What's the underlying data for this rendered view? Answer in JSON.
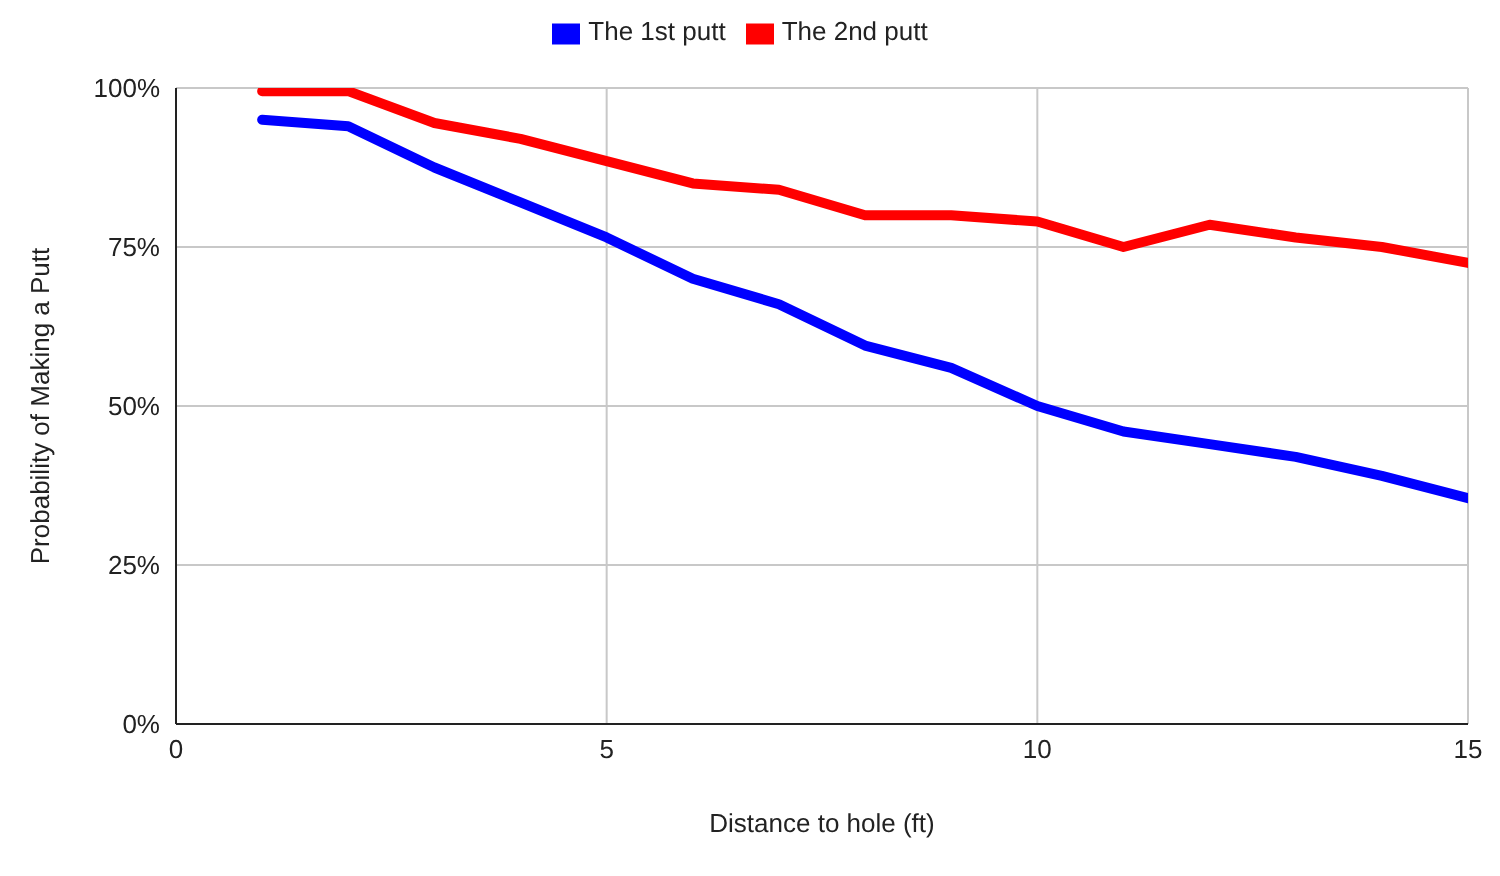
{
  "chart_data": {
    "type": "line",
    "xlabel": "Distance to hole (ft)",
    "ylabel": "Probability of Making a Putt",
    "x": [
      1,
      2,
      3,
      4,
      5,
      6,
      7,
      8,
      9,
      10,
      11,
      12,
      13,
      14,
      15
    ],
    "series": [
      {
        "name": "The 1st putt",
        "color": "#0000ff",
        "values": [
          95,
          94,
          87.5,
          82,
          76.5,
          70,
          66,
          59.5,
          56,
          50,
          46,
          44,
          42,
          39,
          35.5
        ]
      },
      {
        "name": "The 2nd putt",
        "color": "#ff0000",
        "values": [
          99.5,
          99.5,
          94.5,
          92,
          88.5,
          85,
          84,
          80,
          80,
          79,
          75,
          78.5,
          76.5,
          75,
          72.5
        ]
      }
    ],
    "xlim": [
      0,
      15
    ],
    "xticks": [
      0,
      5,
      10,
      15
    ],
    "ylim": [
      0,
      100
    ],
    "yticks": [
      {
        "value": 0,
        "label": "0%"
      },
      {
        "value": 25,
        "label": "25%"
      },
      {
        "value": 50,
        "label": "50%"
      },
      {
        "value": 75,
        "label": "75%"
      },
      {
        "value": 100,
        "label": "100%"
      }
    ],
    "grid": true,
    "legend": "top",
    "marker": "none",
    "line_style": "solid"
  }
}
